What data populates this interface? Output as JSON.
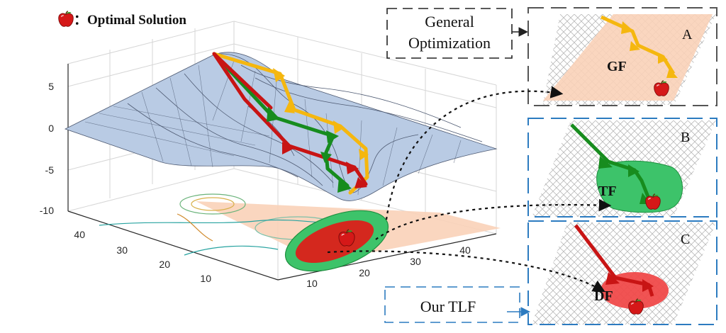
{
  "legend": {
    "marker": "apple-icon",
    "text": "：Optimal Solution"
  },
  "z_ticks": [
    "5",
    "0",
    "-5",
    "-10"
  ],
  "y_ticks": [
    "40",
    "30",
    "20",
    "10"
  ],
  "x_ticks": [
    "10",
    "20",
    "30",
    "40"
  ],
  "callouts": {
    "general": [
      "General",
      "Optimization"
    ],
    "ours": "Our TLF"
  },
  "panels": [
    {
      "letter": "A",
      "tag": "GF"
    },
    {
      "letter": "B",
      "tag": "TF"
    },
    {
      "letter": "C",
      "tag": "DF"
    }
  ],
  "colors": {
    "yellow_path": "#F5B70F",
    "green_path": "#178C1E",
    "red_path": "#C81414",
    "gf_region": "#F9D2B8",
    "tf_region": "#3DC36A",
    "df_region": "#F04A4A",
    "surface": "#B9CBE4",
    "mesh": "#4F5B73",
    "panel_frame_top": "#555555",
    "panel_frame_blue": "#2C7BC0"
  }
}
